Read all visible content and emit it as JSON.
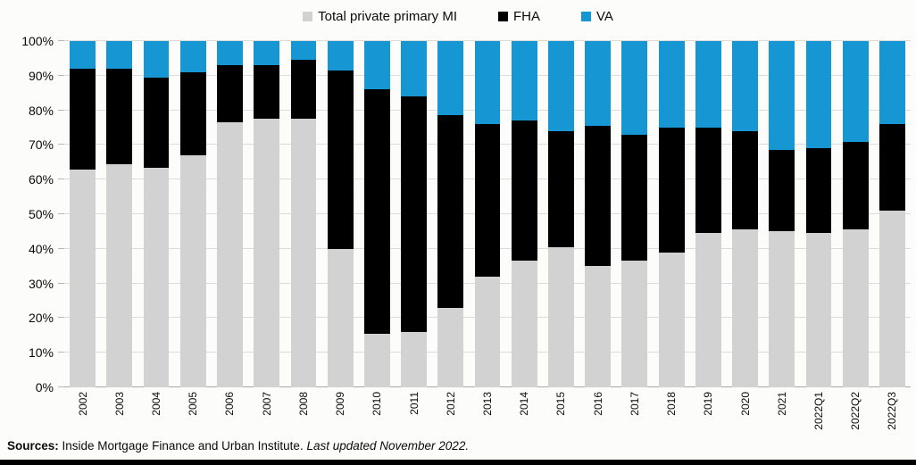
{
  "legend": [
    {
      "label": "Total private primary MI",
      "color": "#d2d2d2"
    },
    {
      "label": "FHA",
      "color": "#000000"
    },
    {
      "label": "VA",
      "color": "#1696d2"
    }
  ],
  "y_axis_ticks": [
    "100%",
    "90%",
    "80%",
    "70%",
    "60%",
    "50%",
    "40%",
    "30%",
    "20%",
    "10%",
    "0%"
  ],
  "chart_data": {
    "type": "bar",
    "stacked": true,
    "unit": "percent",
    "title": "",
    "xlabel": "",
    "ylabel": "",
    "ylim": [
      0,
      100
    ],
    "grid": true,
    "legend_position": "top",
    "categories": [
      "2002",
      "2003",
      "2004",
      "2005",
      "2006",
      "2007",
      "2008",
      "2009",
      "2010",
      "2011",
      "2012",
      "2013",
      "2014",
      "2015",
      "2016",
      "2017",
      "2018",
      "2019",
      "2020",
      "2021",
      "2022Q1",
      "2022Q2",
      "2022Q3"
    ],
    "series": [
      {
        "name": "Total private primary MI",
        "color": "#d2d2d2",
        "values": [
          63,
          64.5,
          63.5,
          67,
          76.5,
          77.5,
          77.5,
          40,
          15.5,
          16,
          23,
          32,
          36.5,
          40.5,
          35,
          36.5,
          39,
          44.5,
          45.5,
          45,
          44.5,
          45.5,
          51
        ]
      },
      {
        "name": "FHA",
        "color": "#000000",
        "values": [
          29,
          27.5,
          26,
          24,
          16.5,
          15.5,
          17,
          51.5,
          70.5,
          68,
          55.5,
          44,
          40.5,
          33.5,
          40.5,
          36.5,
          36,
          30.5,
          28.5,
          23.5,
          24.5,
          25.5,
          25
        ]
      },
      {
        "name": "VA",
        "color": "#1696d2",
        "values": [
          8,
          8,
          10.5,
          9,
          7,
          7,
          5.5,
          8.5,
          14,
          16,
          21.5,
          24,
          23,
          26,
          24.5,
          27,
          25,
          25,
          26,
          31.5,
          31,
          29,
          24
        ]
      }
    ]
  },
  "footer": {
    "sources_label": "Sources:",
    "sources_text": " Inside Mortgage Finance and Urban Institute. ",
    "updated_text": "Last updated November 2022."
  }
}
